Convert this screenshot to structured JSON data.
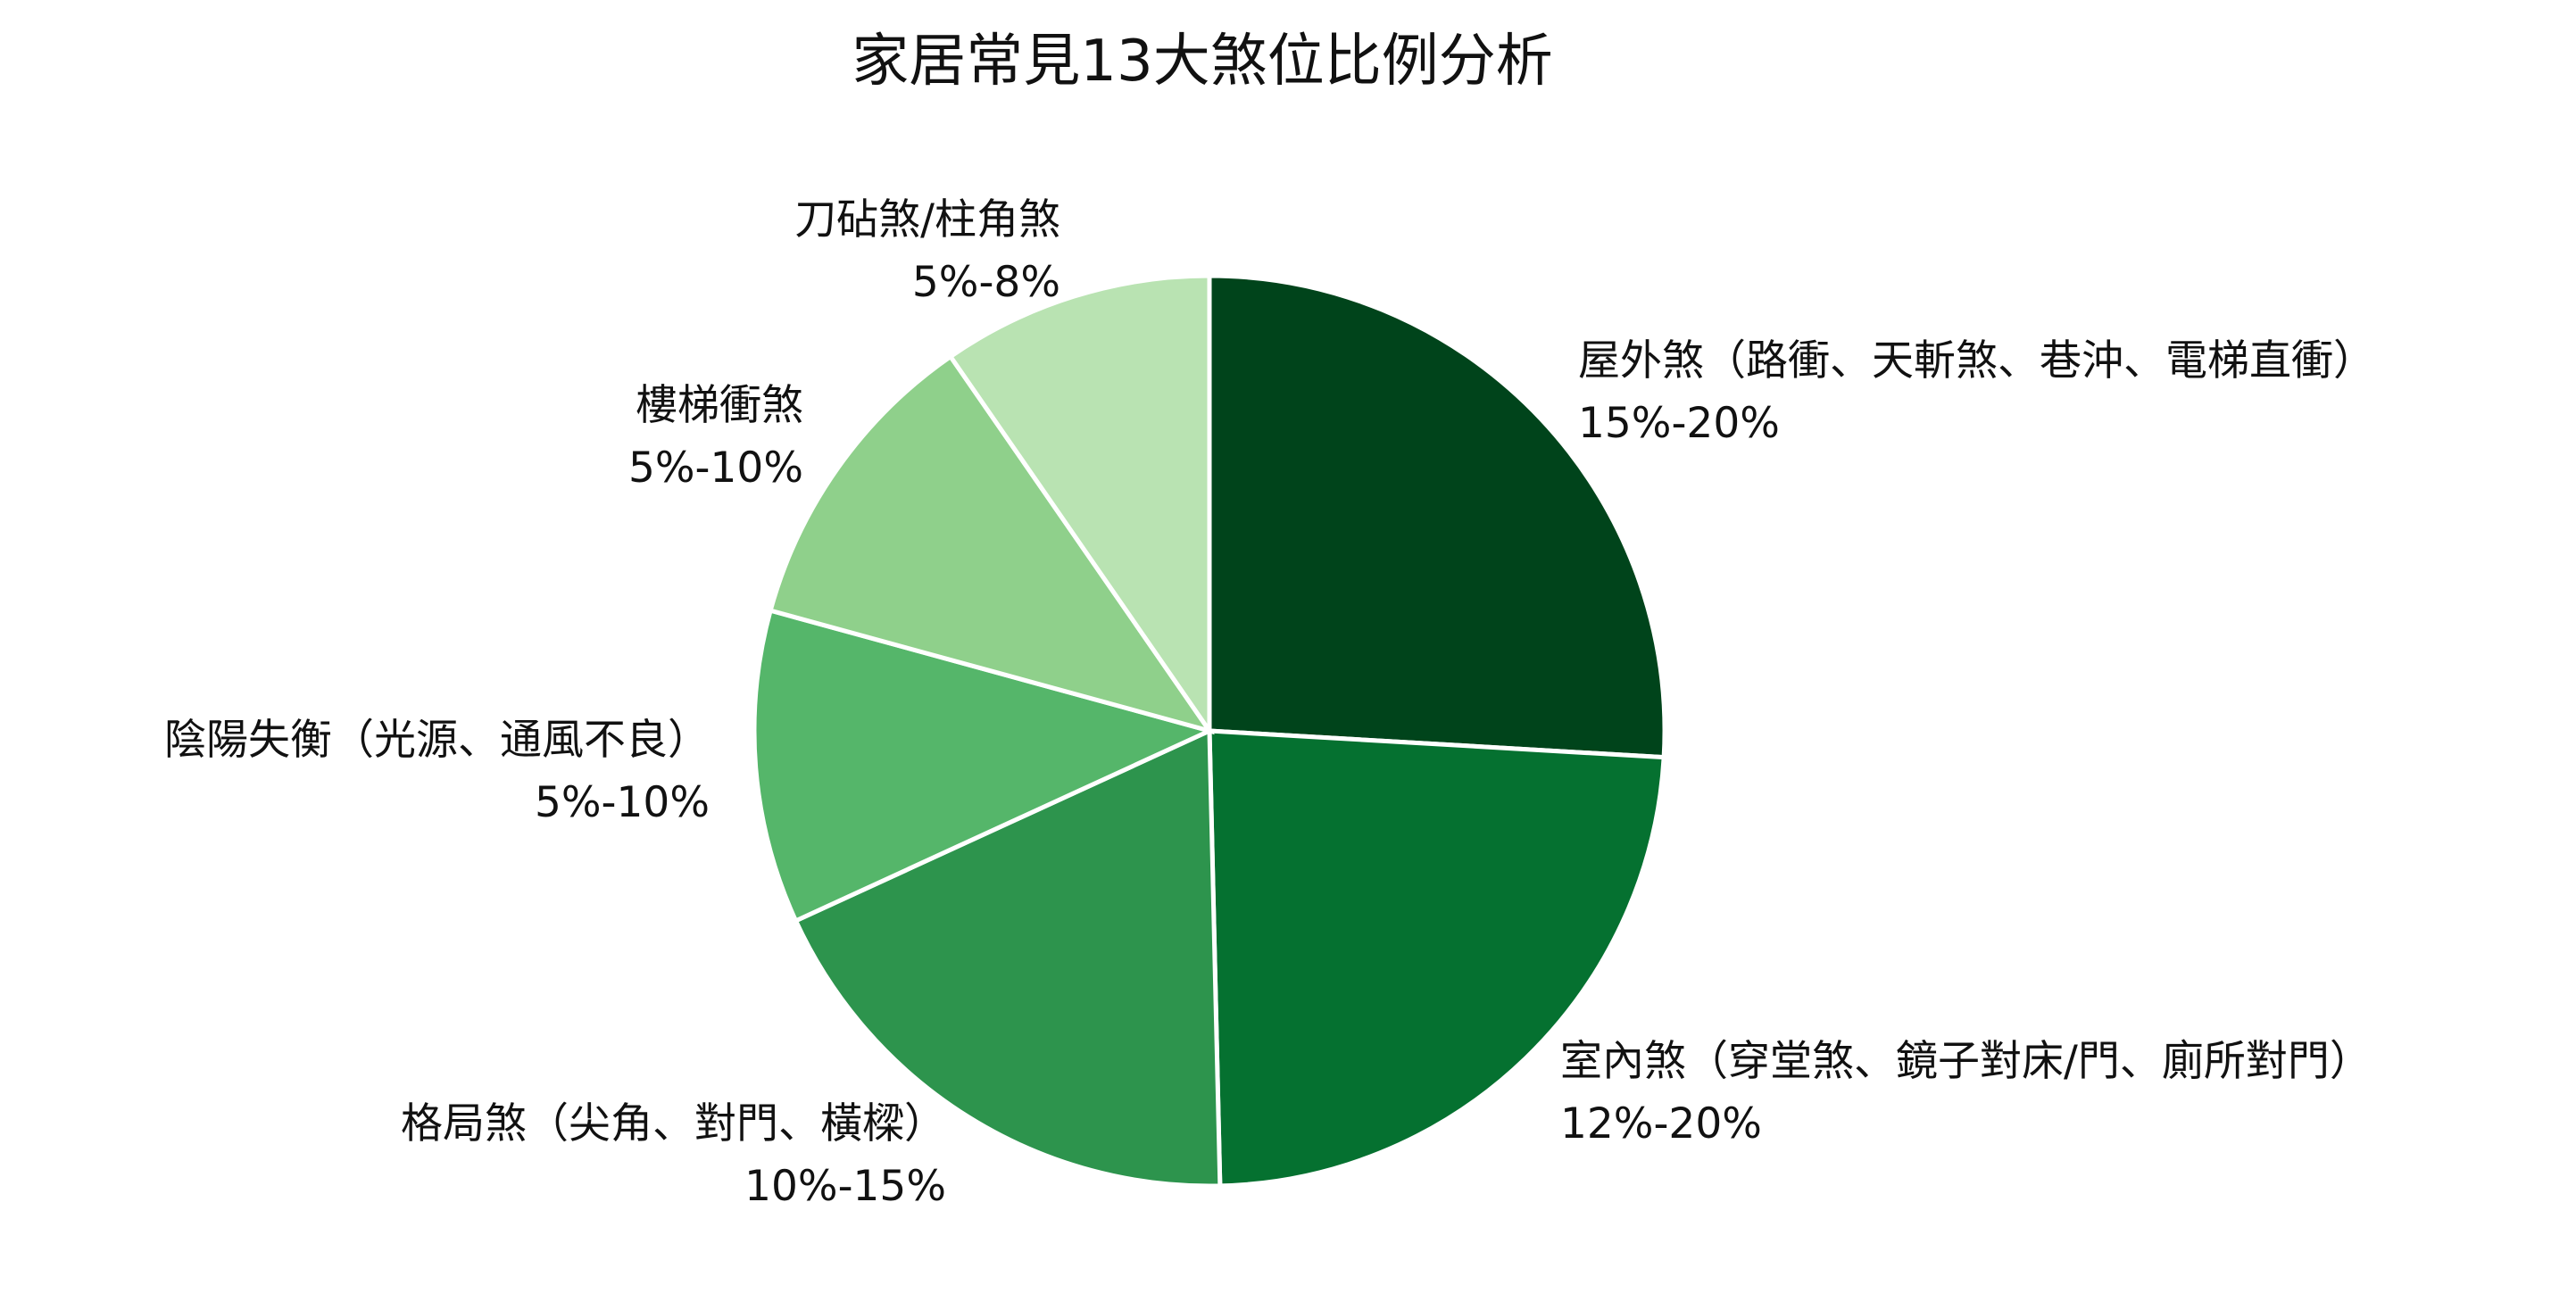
{
  "chart_data": {
    "type": "pie",
    "title": "家居常見13大煞位比例分析",
    "slices": [
      {
        "label": "屋外煞（路衝、天斬煞、巷沖、電梯直衝）",
        "range": "15%-20%",
        "value": 17.5,
        "color": "#00441b"
      },
      {
        "label": "室內煞（穿堂煞、鏡子對床/門、廁所對門）",
        "range": "12%-20%",
        "value": 16.0,
        "color": "#057130"
      },
      {
        "label": "格局煞（尖角、對門、橫樑）",
        "range": "10%-15%",
        "value": 12.5,
        "color": "#2d944d"
      },
      {
        "label": "陰陽失衡（光源、通風不良）",
        "range": "5%-10%",
        "value": 7.5,
        "color": "#55b66a"
      },
      {
        "label": "樓梯衝煞",
        "range": "5%-10%",
        "value": 7.5,
        "color": "#8fd08b"
      },
      {
        "label": "刀砧煞/柱角煞",
        "range": "5%-8%",
        "value": 6.5,
        "color": "#b9e3b2"
      }
    ],
    "legend": "none"
  }
}
